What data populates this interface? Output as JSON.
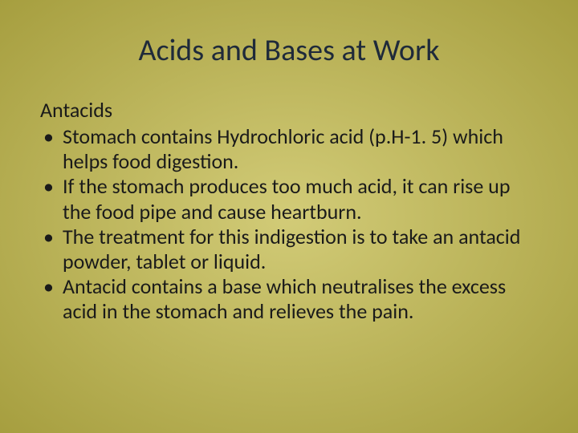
{
  "slide": {
    "background_color": "#c3ba4a",
    "title": {
      "text": "Acids and Bases at Work",
      "color": "#1f2a3a",
      "fontsize": 38
    },
    "subheading": {
      "text": "Antacids",
      "color": "#1a1a1a",
      "fontsize": 26
    },
    "bullets": {
      "color": "#1a1a1a",
      "fontsize": 26,
      "marker": "•",
      "items": [
        "Stomach contains Hydrochloric acid (p.H-1. 5) which helps food digestion.",
        "If the stomach produces too much acid, it can rise up the food pipe and cause heartburn.",
        "The treatment for this indigestion is to take an antacid powder, tablet or liquid.",
        "Antacid contains a base which neutralises the excess acid in the stomach and relieves the pain."
      ]
    }
  }
}
